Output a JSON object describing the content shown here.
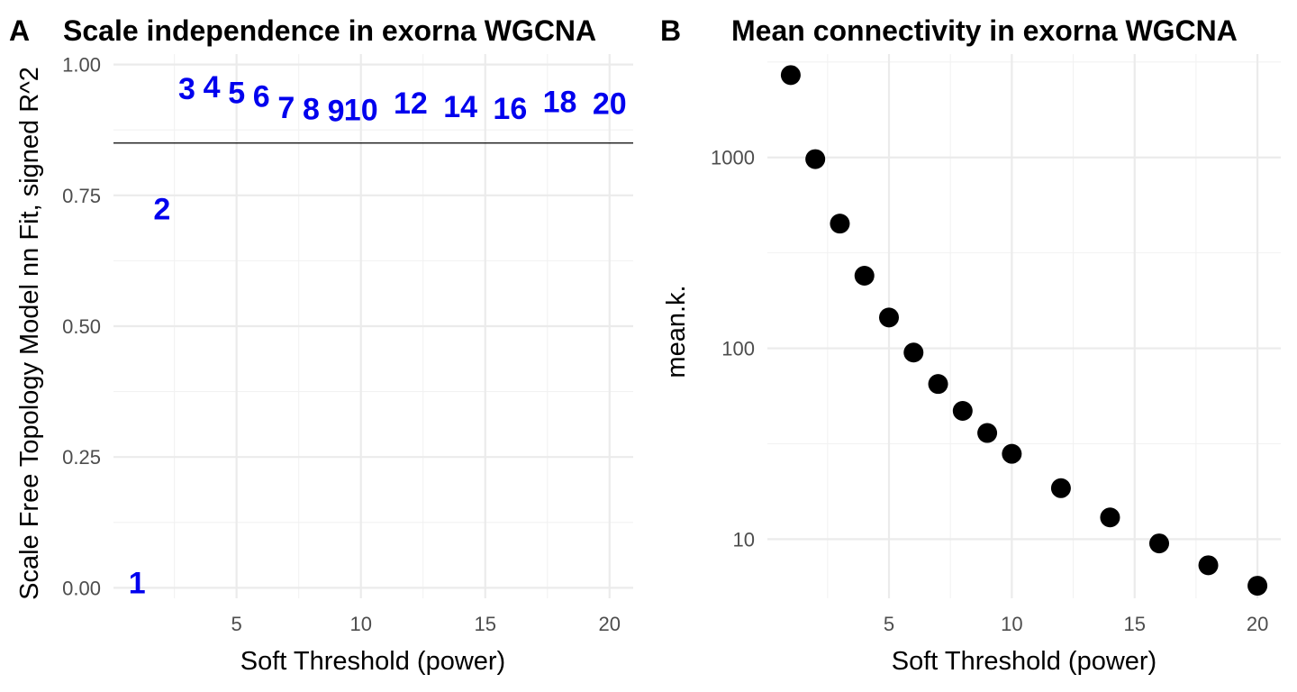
{
  "chart_data": [
    {
      "type": "scatter",
      "panel_tag": "A",
      "title": "Scale independence in exorna WGCNA",
      "xlabel": "Soft Threshold (power)",
      "ylabel": "Scale Free Topology Model nn Fit, signed R^2",
      "xlim": [
        0.05,
        20.95
      ],
      "ylim": [
        -0.02,
        1.02
      ],
      "x_ticks": [
        5,
        10,
        15,
        20
      ],
      "y_ticks": [
        0.0,
        0.25,
        0.5,
        0.75,
        1.0
      ],
      "y_tick_labels": [
        "0.00",
        "0.25",
        "0.50",
        "0.75",
        "1.00"
      ],
      "grid": true,
      "hline": 0.85,
      "marker": "text",
      "label_color": "#0000ee",
      "points": [
        {
          "x": 1,
          "y": 0.01,
          "label": "1"
        },
        {
          "x": 2,
          "y": 0.725,
          "label": "2"
        },
        {
          "x": 3,
          "y": 0.955,
          "label": "3"
        },
        {
          "x": 4,
          "y": 0.958,
          "label": "4"
        },
        {
          "x": 5,
          "y": 0.947,
          "label": "5"
        },
        {
          "x": 6,
          "y": 0.94,
          "label": "6"
        },
        {
          "x": 7,
          "y": 0.918,
          "label": "7"
        },
        {
          "x": 8,
          "y": 0.916,
          "label": "8"
        },
        {
          "x": 9,
          "y": 0.912,
          "label": "9"
        },
        {
          "x": 10,
          "y": 0.914,
          "label": "10"
        },
        {
          "x": 12,
          "y": 0.927,
          "label": "12"
        },
        {
          "x": 14,
          "y": 0.92,
          "label": "14"
        },
        {
          "x": 16,
          "y": 0.917,
          "label": "16"
        },
        {
          "x": 18,
          "y": 0.93,
          "label": "18"
        },
        {
          "x": 20,
          "y": 0.926,
          "label": "20"
        }
      ]
    },
    {
      "type": "scatter",
      "panel_tag": "B",
      "title": "Mean connectivity in exorna WGCNA",
      "xlabel": "Soft Threshold (power)",
      "ylabel": "mean.k.",
      "xlim": [
        0.05,
        20.95
      ],
      "ylim": [
        4.9,
        3480
      ],
      "y_scale": "log10",
      "x_ticks": [
        5,
        10,
        15,
        20
      ],
      "y_ticks": [
        10,
        100,
        1000
      ],
      "grid": true,
      "marker": "circle",
      "point_color": "#000000",
      "points": [
        {
          "x": 1,
          "y": 2700
        },
        {
          "x": 2,
          "y": 980
        },
        {
          "x": 3,
          "y": 450
        },
        {
          "x": 4,
          "y": 240
        },
        {
          "x": 5,
          "y": 145
        },
        {
          "x": 6,
          "y": 95
        },
        {
          "x": 7,
          "y": 65
        },
        {
          "x": 8,
          "y": 47
        },
        {
          "x": 9,
          "y": 36
        },
        {
          "x": 10,
          "y": 28
        },
        {
          "x": 12,
          "y": 18.5
        },
        {
          "x": 14,
          "y": 13
        },
        {
          "x": 16,
          "y": 9.5
        },
        {
          "x": 18,
          "y": 7.3
        },
        {
          "x": 20,
          "y": 5.7
        }
      ]
    }
  ]
}
